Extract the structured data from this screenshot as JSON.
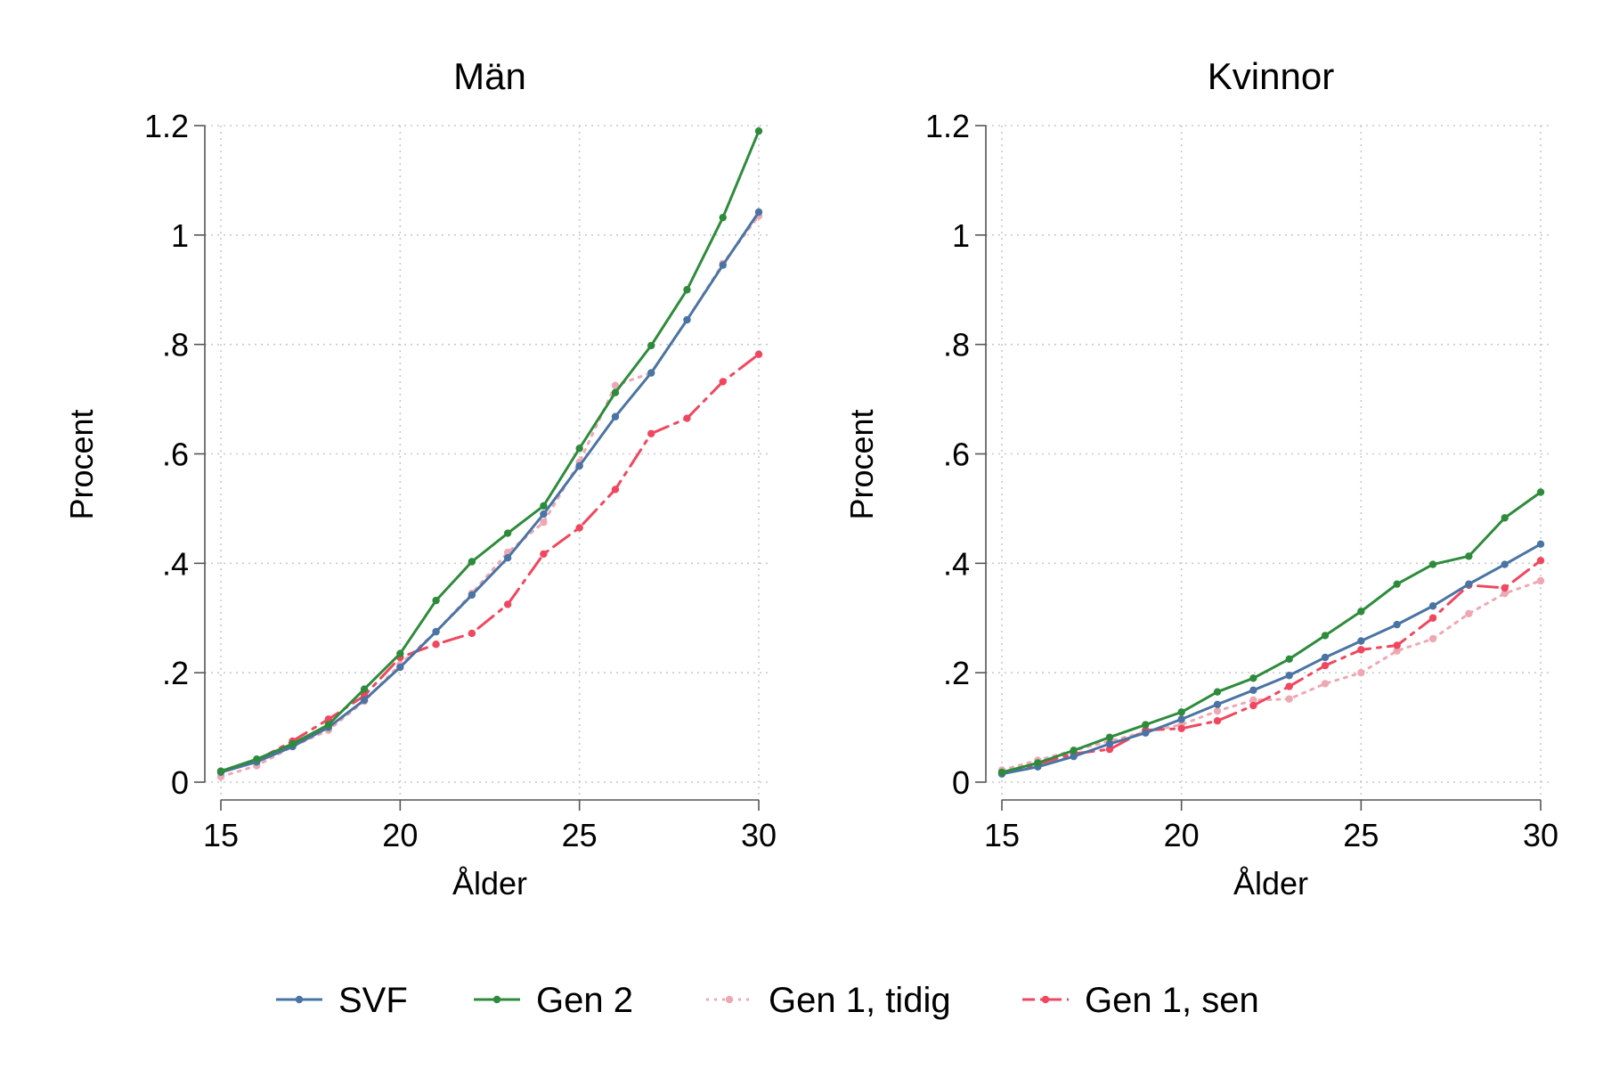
{
  "chart_data": {
    "type": "line",
    "x": [
      15,
      16,
      17,
      18,
      19,
      20,
      21,
      22,
      23,
      24,
      25,
      26,
      27,
      28,
      29,
      30
    ],
    "xlabel": "Ålder",
    "ylabel": "Procent",
    "xlim": [
      15,
      30
    ],
    "ylim": [
      0,
      1.2
    ],
    "xticks": [
      "15",
      "20",
      "25",
      "30"
    ],
    "yticks": [
      "0",
      ".2",
      ".4",
      ".6",
      ".8",
      "1",
      "1.2"
    ],
    "grid": true,
    "legend_position": "bottom",
    "colors": {
      "SVF": "#4a74a3",
      "Gen 2": "#2e8b3c",
      "Gen 1, tidig": "#eea8b4",
      "Gen 1, sen": "#f0475f"
    },
    "panels": [
      {
        "title": "Män",
        "series": [
          {
            "name": "SVF",
            "style": "solid",
            "values": [
              0.018,
              0.037,
              0.065,
              0.1,
              0.15,
              0.21,
              0.275,
              0.342,
              0.41,
              0.49,
              0.578,
              0.668,
              0.748,
              0.845,
              0.945,
              1.042
            ]
          },
          {
            "name": "Gen 2",
            "style": "solid",
            "values": [
              0.02,
              0.042,
              0.07,
              0.105,
              0.17,
              0.235,
              0.332,
              0.403,
              0.455,
              0.505,
              0.61,
              0.712,
              0.798,
              0.9,
              1.032,
              1.19
            ]
          },
          {
            "name": "Gen 1, tidig",
            "style": "dotted",
            "values": [
              0.01,
              0.03,
              0.065,
              0.095,
              0.148,
              0.215,
              0.275,
              0.345,
              0.42,
              0.475,
              0.585,
              0.725,
              0.748,
              0.845,
              0.948,
              1.035
            ]
          },
          {
            "name": "Gen 1, sen",
            "style": "dashdot",
            "values": [
              0.02,
              0.04,
              0.075,
              0.115,
              0.158,
              0.228,
              0.252,
              0.272,
              0.325,
              0.417,
              0.465,
              0.535,
              0.637,
              0.665,
              0.732,
              0.782
            ]
          }
        ]
      },
      {
        "title": "Kvinnor",
        "series": [
          {
            "name": "SVF",
            "style": "solid",
            "values": [
              0.015,
              0.028,
              0.047,
              0.07,
              0.09,
              0.115,
              0.142,
              0.168,
              0.195,
              0.228,
              0.258,
              0.288,
              0.322,
              0.362,
              0.398,
              0.435
            ]
          },
          {
            "name": "Gen 2",
            "style": "solid",
            "values": [
              0.018,
              0.035,
              0.058,
              0.082,
              0.105,
              0.128,
              0.165,
              0.19,
              0.225,
              0.268,
              0.312,
              0.362,
              0.398,
              0.413,
              0.483,
              0.53
            ]
          },
          {
            "name": "Gen 1, tidig",
            "style": "dotted",
            "values": [
              0.022,
              0.04,
              0.058,
              0.075,
              0.092,
              0.105,
              0.13,
              0.15,
              0.152,
              0.18,
              0.2,
              0.24,
              0.262,
              0.308,
              0.345,
              0.368
            ]
          },
          {
            "name": "Gen 1, sen",
            "style": "dashdot",
            "values": [
              0.017,
              0.033,
              0.052,
              0.06,
              0.095,
              0.098,
              0.112,
              0.14,
              0.175,
              0.213,
              0.242,
              0.25,
              0.3,
              0.36,
              0.355,
              0.405
            ]
          }
        ]
      }
    ]
  }
}
